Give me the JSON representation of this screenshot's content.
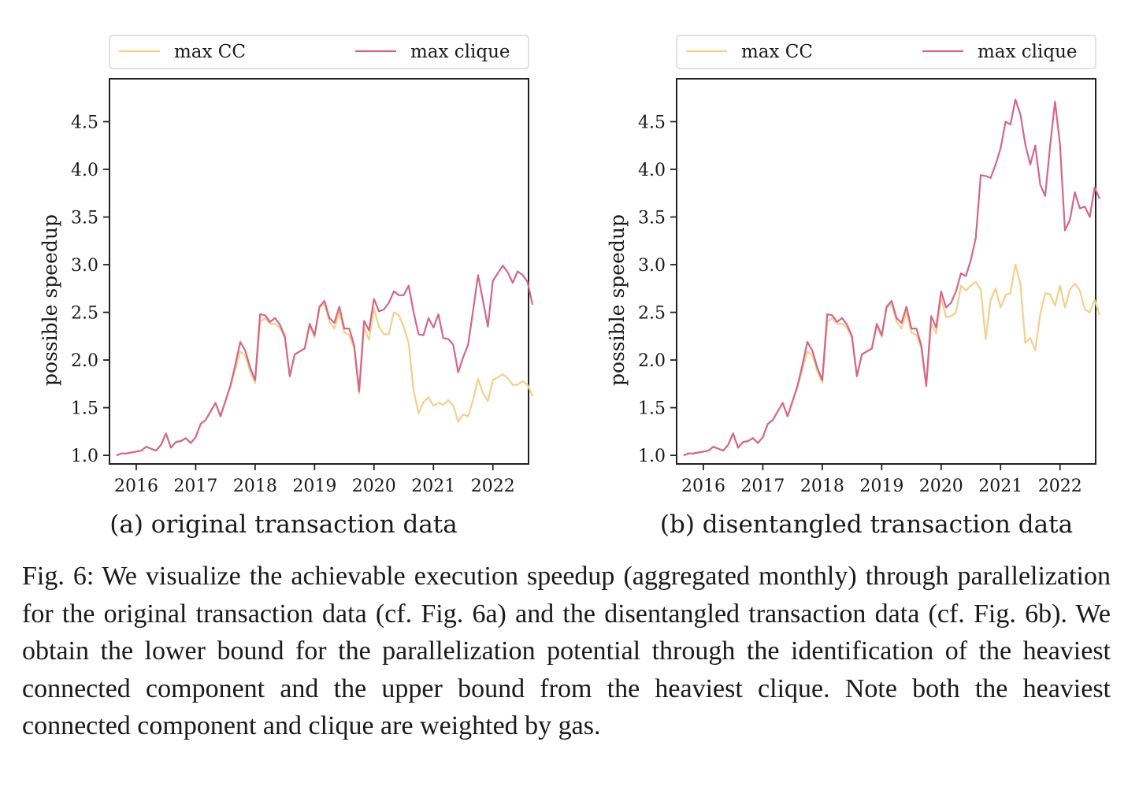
{
  "charts_colors": {
    "max_cc": "#f4cf8c",
    "max_clique": "#d3678a"
  },
  "chart_data": [
    {
      "type": "line",
      "id": "a",
      "subcaption": "(a) original transaction data",
      "ylabel": "possible speedup",
      "xlabel": "",
      "xlim": [
        2015.55,
        2022.6
      ],
      "ylim": [
        0.91,
        4.95
      ],
      "xticks": [
        2016,
        2017,
        2018,
        2019,
        2020,
        2021,
        2022
      ],
      "xtick_labels": [
        "2016",
        "2017",
        "2018",
        "2019",
        "2020",
        "2021",
        "2022"
      ],
      "yticks": [
        1.0,
        1.5,
        2.0,
        2.5,
        3.0,
        3.5,
        4.0,
        4.5
      ],
      "ytick_labels": [
        "1.0",
        "1.5",
        "2.0",
        "2.5",
        "3.0",
        "3.5",
        "4.0",
        "4.5"
      ],
      "legend": {
        "position": "top",
        "entries": [
          "max CC",
          "max clique"
        ]
      },
      "x_start": 2015.667,
      "x_step": 0.08333,
      "series": [
        {
          "name": "max clique",
          "color": "#d3678a",
          "values": [
            1.0,
            1.02,
            1.02,
            1.03,
            1.04,
            1.05,
            1.09,
            1.07,
            1.05,
            1.11,
            1.23,
            1.08,
            1.14,
            1.15,
            1.18,
            1.13,
            1.19,
            1.33,
            1.37,
            1.46,
            1.55,
            1.41,
            1.57,
            1.73,
            1.95,
            2.19,
            2.1,
            1.92,
            1.79,
            2.48,
            2.47,
            2.4,
            2.44,
            2.37,
            2.25,
            1.83,
            2.06,
            2.09,
            2.12,
            2.38,
            2.26,
            2.56,
            2.62,
            2.44,
            2.39,
            2.56,
            2.33,
            2.33,
            2.15,
            1.67,
            2.41,
            2.31,
            2.64,
            2.51,
            2.53,
            2.6,
            2.72,
            2.68,
            2.68,
            2.78,
            2.5,
            2.27,
            2.26,
            2.44,
            2.34,
            2.48,
            2.23,
            2.22,
            2.16,
            1.87,
            2.03,
            2.16,
            2.52,
            2.89,
            2.62,
            2.35,
            2.83,
            2.91,
            2.99,
            2.92,
            2.81,
            2.93,
            2.89,
            2.82,
            2.58
          ]
        },
        {
          "name": "max CC",
          "color": "#f4cf8c",
          "values": [
            1.0,
            1.02,
            1.02,
            1.03,
            1.04,
            1.05,
            1.09,
            1.07,
            1.05,
            1.11,
            1.23,
            1.08,
            1.14,
            1.15,
            1.18,
            1.13,
            1.19,
            1.33,
            1.37,
            1.46,
            1.55,
            1.41,
            1.57,
            1.72,
            1.9,
            2.09,
            2.05,
            1.88,
            1.76,
            2.4,
            2.44,
            2.38,
            2.38,
            2.34,
            2.23,
            1.83,
            2.06,
            2.09,
            2.12,
            2.36,
            2.24,
            2.55,
            2.59,
            2.4,
            2.33,
            2.5,
            2.29,
            2.26,
            2.12,
            1.65,
            2.34,
            2.21,
            2.54,
            2.35,
            2.27,
            2.27,
            2.5,
            2.47,
            2.35,
            2.18,
            1.68,
            1.44,
            1.56,
            1.61,
            1.52,
            1.55,
            1.53,
            1.58,
            1.52,
            1.35,
            1.43,
            1.41,
            1.58,
            1.8,
            1.65,
            1.57,
            1.79,
            1.82,
            1.85,
            1.81,
            1.74,
            1.74,
            1.78,
            1.74,
            1.62
          ]
        }
      ]
    },
    {
      "type": "line",
      "id": "b",
      "subcaption": "(b) disentangled transaction data",
      "ylabel": "possible speedup",
      "xlabel": "",
      "xlim": [
        2015.55,
        2022.6
      ],
      "ylim": [
        0.91,
        4.95
      ],
      "xticks": [
        2016,
        2017,
        2018,
        2019,
        2020,
        2021,
        2022
      ],
      "xtick_labels": [
        "2016",
        "2017",
        "2018",
        "2019",
        "2020",
        "2021",
        "2022"
      ],
      "yticks": [
        1.0,
        1.5,
        2.0,
        2.5,
        3.0,
        3.5,
        4.0,
        4.5
      ],
      "ytick_labels": [
        "1.0",
        "1.5",
        "2.0",
        "2.5",
        "3.0",
        "3.5",
        "4.0",
        "4.5"
      ],
      "legend": {
        "position": "top",
        "entries": [
          "max CC",
          "max clique"
        ]
      },
      "x_start": 2015.667,
      "x_step": 0.08333,
      "series": [
        {
          "name": "max clique",
          "color": "#d3678a",
          "values": [
            1.0,
            1.02,
            1.02,
            1.03,
            1.04,
            1.05,
            1.09,
            1.07,
            1.05,
            1.11,
            1.23,
            1.08,
            1.14,
            1.15,
            1.18,
            1.13,
            1.19,
            1.33,
            1.37,
            1.46,
            1.55,
            1.41,
            1.57,
            1.73,
            1.95,
            2.19,
            2.1,
            1.92,
            1.79,
            2.48,
            2.47,
            2.4,
            2.44,
            2.37,
            2.25,
            1.83,
            2.06,
            2.09,
            2.12,
            2.38,
            2.26,
            2.56,
            2.62,
            2.44,
            2.39,
            2.56,
            2.33,
            2.33,
            2.15,
            1.73,
            2.46,
            2.34,
            2.72,
            2.55,
            2.6,
            2.72,
            2.91,
            2.88,
            3.05,
            3.28,
            3.94,
            3.93,
            3.91,
            4.05,
            4.22,
            4.5,
            4.47,
            4.73,
            4.58,
            4.26,
            4.05,
            4.25,
            3.84,
            3.72,
            4.25,
            4.71,
            4.26,
            3.36,
            3.47,
            3.76,
            3.59,
            3.61,
            3.5,
            3.81,
            3.69
          ]
        },
        {
          "name": "max CC",
          "color": "#f4cf8c",
          "values": [
            1.0,
            1.02,
            1.02,
            1.03,
            1.04,
            1.05,
            1.09,
            1.07,
            1.05,
            1.11,
            1.23,
            1.08,
            1.14,
            1.15,
            1.18,
            1.13,
            1.19,
            1.33,
            1.37,
            1.46,
            1.55,
            1.41,
            1.57,
            1.72,
            1.9,
            2.09,
            2.05,
            1.88,
            1.76,
            2.4,
            2.44,
            2.38,
            2.38,
            2.34,
            2.23,
            1.83,
            2.06,
            2.09,
            2.12,
            2.36,
            2.24,
            2.55,
            2.59,
            2.4,
            2.33,
            2.5,
            2.29,
            2.26,
            2.12,
            1.72,
            2.38,
            2.28,
            2.65,
            2.45,
            2.46,
            2.5,
            2.78,
            2.73,
            2.78,
            2.82,
            2.74,
            2.22,
            2.63,
            2.75,
            2.55,
            2.68,
            2.7,
            3.0,
            2.8,
            2.18,
            2.23,
            2.1,
            2.48,
            2.7,
            2.69,
            2.57,
            2.78,
            2.55,
            2.74,
            2.8,
            2.73,
            2.53,
            2.5,
            2.63,
            2.47
          ]
        }
      ]
    }
  ],
  "caption": {
    "label": "Fig. 6:",
    "text": "We visualize the achievable execution speedup (aggregated monthly) through parallelization for the original transaction data (cf. Fig. 6a) and the disentangled transaction data (cf. Fig. 6b). We obtain the lower bound for the parallelization potential through the identification of the heaviest connected component and the upper bound from the heaviest clique. Note both the heaviest connected component and clique are weighted by gas."
  }
}
